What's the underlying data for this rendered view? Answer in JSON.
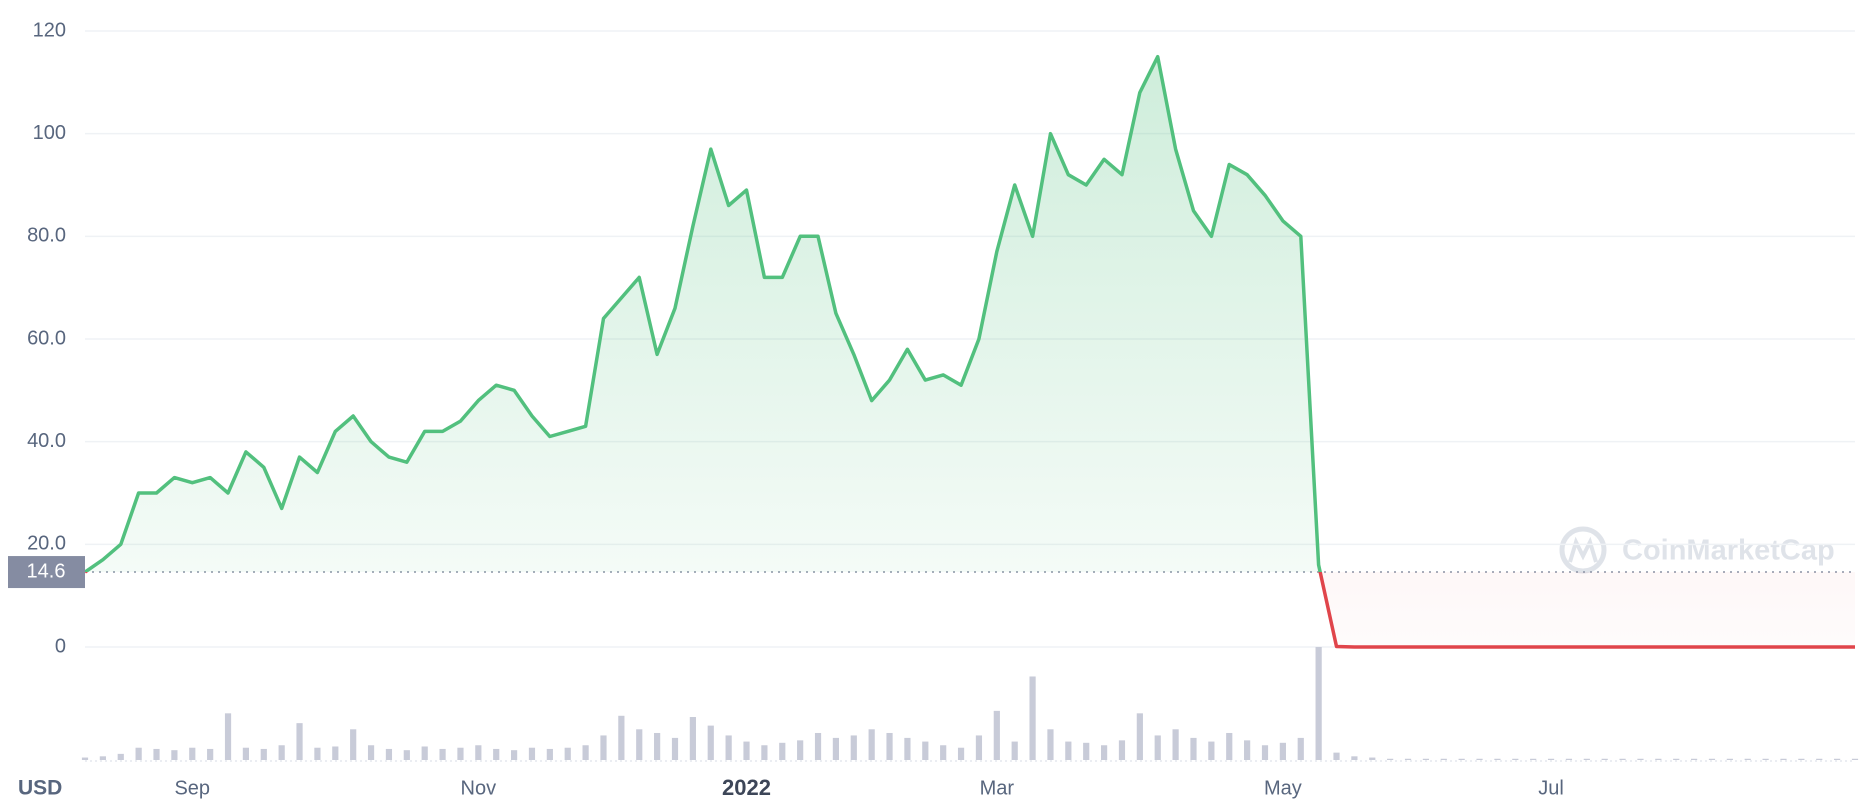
{
  "chart_data": {
    "type": "line",
    "currency": "USD",
    "watermark": "CoinMarketCap",
    "baseline": 14.6,
    "color": "#52c07e",
    "negative_color": "#e0454b",
    "volume_color": "#c8cbd8",
    "grid": true,
    "ylim": [
      0,
      120
    ],
    "yticks": [
      0,
      {
        "value": 20,
        "label": "20.0"
      },
      {
        "value": 40,
        "label": "40.0"
      },
      {
        "value": 60,
        "label": "60.0"
      },
      {
        "value": 80,
        "label": "80.0"
      },
      100,
      120
    ],
    "categories": [
      null,
      null,
      null,
      null,
      null,
      null,
      "Sep",
      null,
      null,
      null,
      null,
      null,
      null,
      null,
      null,
      null,
      null,
      null,
      null,
      null,
      null,
      null,
      "Nov",
      null,
      null,
      null,
      null,
      null,
      null,
      null,
      null,
      null,
      null,
      null,
      null,
      null,
      null,
      "2022",
      null,
      null,
      null,
      null,
      null,
      null,
      null,
      null,
      null,
      null,
      null,
      null,
      null,
      "Mar",
      null,
      null,
      null,
      null,
      null,
      null,
      null,
      null,
      null,
      null,
      null,
      null,
      null,
      null,
      null,
      "May",
      null,
      null,
      null,
      null,
      null,
      null,
      null,
      null,
      null,
      null,
      null,
      null,
      null,
      null,
      "Jul",
      null,
      null,
      null,
      null,
      null,
      null,
      null,
      null,
      null,
      null,
      null,
      null,
      null,
      null,
      null,
      null,
      null
    ],
    "values": [
      14.6,
      17,
      20,
      30,
      30,
      33,
      32,
      33,
      30,
      38,
      35,
      27,
      37,
      34,
      42,
      45,
      40,
      37,
      36,
      42,
      42,
      44,
      48,
      51,
      50,
      45,
      41,
      42,
      43,
      64,
      68,
      72,
      57,
      66,
      82,
      97,
      86,
      89,
      72,
      72,
      80,
      80,
      65,
      57,
      48,
      52,
      58,
      52,
      53,
      51,
      60,
      77,
      90,
      80,
      100,
      92,
      90,
      95,
      92,
      108,
      115,
      97,
      85,
      80,
      94,
      92,
      88,
      83,
      80,
      16,
      0.1,
      0,
      0,
      0,
      0,
      0,
      0,
      0,
      0,
      0,
      0,
      0,
      0,
      0,
      0,
      0,
      0,
      0,
      0,
      0,
      0,
      0,
      0,
      0,
      0,
      0,
      0,
      0,
      0,
      0
    ],
    "volume": [
      2,
      3,
      5,
      10,
      9,
      8,
      10,
      9,
      38,
      10,
      9,
      12,
      30,
      10,
      11,
      25,
      12,
      9,
      8,
      11,
      9,
      10,
      12,
      9,
      8,
      10,
      9,
      10,
      12,
      20,
      36,
      25,
      22,
      18,
      35,
      28,
      20,
      15,
      12,
      14,
      16,
      22,
      18,
      20,
      25,
      22,
      18,
      15,
      12,
      10,
      20,
      40,
      15,
      68,
      25,
      15,
      14,
      12,
      16,
      38,
      20,
      25,
      18,
      15,
      22,
      16,
      12,
      14,
      18,
      92,
      6,
      3,
      2,
      1,
      1,
      1,
      1,
      1,
      1,
      1,
      1,
      1,
      1,
      1,
      1,
      1,
      1,
      1,
      1,
      1,
      1,
      1,
      1,
      1,
      1,
      1,
      1,
      1,
      1,
      1
    ]
  }
}
